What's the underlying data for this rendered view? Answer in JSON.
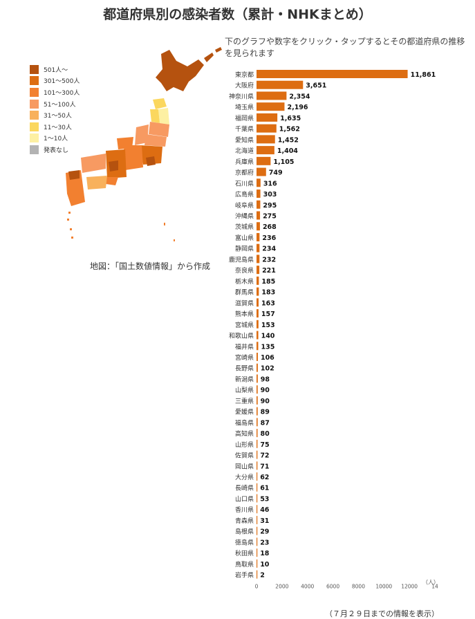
{
  "title": "都道府県別の感染者数（累計・NHKまとめ）",
  "instruction": "下のグラフや数字をクリック・タップするとその都道府県の推移を見られます",
  "map_note": "地図：「国土数値情報」から作成",
  "footnote": "（７月２９日までの情報を表示）",
  "legend": [
    {
      "label": "501人～",
      "color": "#b5520f"
    },
    {
      "label": "301～500人",
      "color": "#dd6d12"
    },
    {
      "label": "101～300人",
      "color": "#f28030"
    },
    {
      "label": "51～100人",
      "color": "#f79a62"
    },
    {
      "label": "31～50人",
      "color": "#f8b15c"
    },
    {
      "label": "11～30人",
      "color": "#fbd75e"
    },
    {
      "label": "1～10人",
      "color": "#fdf0a3"
    },
    {
      "label": "発表なし",
      "color": "#b3b3b3"
    }
  ],
  "chart_data": {
    "type": "bar",
    "orientation": "horizontal",
    "categories": [
      "東京都",
      "大阪府",
      "神奈川県",
      "埼玉県",
      "福岡県",
      "千葉県",
      "愛知県",
      "北海道",
      "兵庫県",
      "京都府",
      "石川県",
      "広島県",
      "岐阜県",
      "沖縄県",
      "茨城県",
      "富山県",
      "静岡県",
      "鹿児島県",
      "奈良県",
      "栃木県",
      "群馬県",
      "滋賀県",
      "熊本県",
      "宮城県",
      "和歌山県",
      "福井県",
      "宮崎県",
      "長野県",
      "新潟県",
      "山梨県",
      "三重県",
      "愛媛県",
      "福島県",
      "高知県",
      "山形県",
      "佐賀県",
      "岡山県",
      "大分県",
      "長崎県",
      "山口県",
      "香川県",
      "青森県",
      "島根県",
      "徳島県",
      "秋田県",
      "鳥取県",
      "岩手県"
    ],
    "values": [
      11861,
      3651,
      2354,
      2196,
      1635,
      1562,
      1452,
      1404,
      1105,
      749,
      316,
      303,
      295,
      275,
      268,
      236,
      234,
      232,
      221,
      185,
      183,
      163,
      157,
      153,
      140,
      135,
      106,
      102,
      98,
      90,
      90,
      89,
      87,
      80,
      75,
      72,
      71,
      62,
      61,
      53,
      46,
      31,
      29,
      23,
      18,
      10,
      2
    ],
    "value_labels": [
      "11,861",
      "3,651",
      "2,354",
      "2,196",
      "1,635",
      "1,562",
      "1,452",
      "1,404",
      "1,105",
      "749",
      "316",
      "303",
      "295",
      "275",
      "268",
      "236",
      "234",
      "232",
      "221",
      "185",
      "183",
      "163",
      "157",
      "153",
      "140",
      "135",
      "106",
      "102",
      "98",
      "90",
      "90",
      "89",
      "87",
      "80",
      "75",
      "72",
      "71",
      "62",
      "61",
      "53",
      "46",
      "31",
      "29",
      "23",
      "18",
      "10",
      "2"
    ],
    "x_ticks": [
      "0",
      "2000",
      "4000",
      "6000",
      "8000",
      "10000",
      "12000",
      "14"
    ],
    "x_unit": "（人）",
    "xlim": [
      0,
      14000
    ],
    "bar_color": "#dd6d12",
    "grid": false
  }
}
